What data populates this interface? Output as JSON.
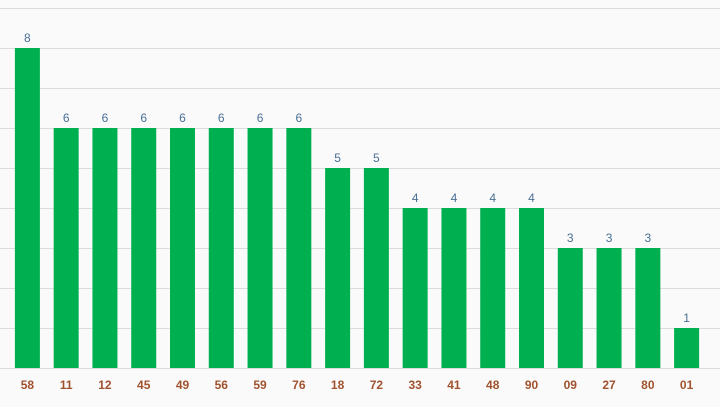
{
  "chart_data": {
    "type": "bar",
    "categories": [
      "58",
      "11",
      "12",
      "45",
      "49",
      "56",
      "59",
      "76",
      "18",
      "72",
      "33",
      "41",
      "48",
      "90",
      "09",
      "27",
      "80",
      "01"
    ],
    "values": [
      8,
      6,
      6,
      6,
      6,
      6,
      6,
      6,
      5,
      5,
      4,
      4,
      4,
      4,
      3,
      3,
      3,
      1
    ],
    "ylim": [
      0,
      9
    ],
    "grid": true,
    "colors": {
      "bar": "#00b050",
      "value_label": "#4a6f96",
      "category_label": "#a0522d",
      "grid": "#dcdcdc"
    }
  }
}
